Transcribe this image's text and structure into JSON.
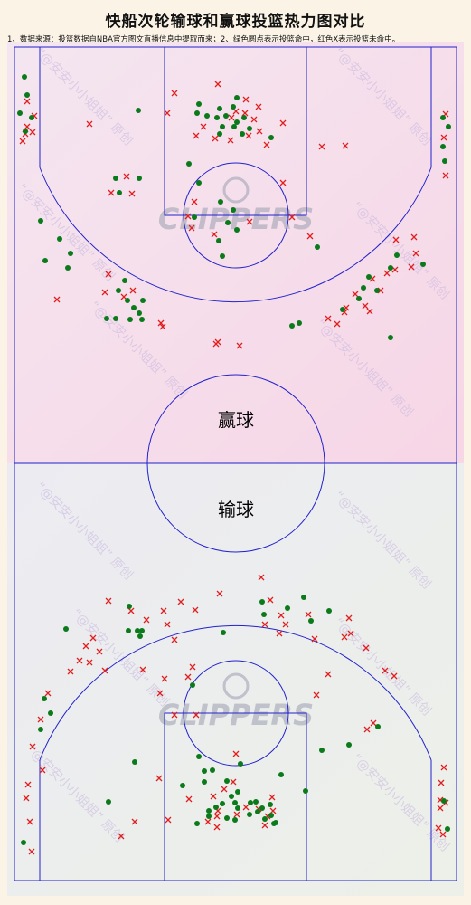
{
  "title": "快船次轮输球和赢球投篮热力图对比",
  "note": "1、数据来源：投篮数据自NBA官方图文直播信息中提取而来；2、绿色圆点表示投篮命中，红色X表示投篮未命中。",
  "watermark": "“@安安小小姐姐” 原创",
  "logo_text": "CLIPPERS",
  "colors": {
    "made": "#0a7a1a",
    "missed": "#e02020",
    "court_line": "#2222cc"
  },
  "chart_data": {
    "type": "scatter",
    "panels": [
      {
        "label": "赢球",
        "made": [
          [
            27,
            85
          ],
          [
            30,
            105
          ],
          [
            22,
            125
          ],
          [
            35,
            130
          ],
          [
            28,
            145
          ],
          [
            153,
            122
          ],
          [
            220,
            115
          ],
          [
            218,
            125
          ],
          [
            229,
            128
          ],
          [
            243,
            120
          ],
          [
            250,
            128
          ],
          [
            258,
            118
          ],
          [
            262,
            108
          ],
          [
            262,
            135
          ],
          [
            270,
            130
          ],
          [
            276,
            142
          ],
          [
            268,
            148
          ],
          [
            259,
            140
          ],
          [
            246,
            140
          ],
          [
            243,
            148
          ],
          [
            240,
            130
          ],
          [
            300,
            152
          ],
          [
            490,
            130
          ],
          [
            496,
            140
          ],
          [
            490,
            162
          ],
          [
            492,
            178
          ],
          [
            209,
            181
          ],
          [
            154,
            197
          ],
          [
            128,
            197
          ],
          [
            132,
            213
          ],
          [
            220,
            202
          ],
          [
            244,
            223
          ],
          [
            258,
            232
          ],
          [
            215,
            240
          ],
          [
            252,
            246
          ],
          [
            262,
            254
          ],
          [
            242,
            266
          ],
          [
            246,
            283
          ],
          [
            351,
            273
          ],
          [
            45,
            244
          ],
          [
            66,
            264
          ],
          [
            78,
            280
          ],
          [
            75,
            296
          ],
          [
            50,
            288
          ],
          [
            138,
            310
          ],
          [
            131,
            321
          ],
          [
            128,
            352
          ],
          [
            141,
            332
          ],
          [
            148,
            340
          ],
          [
            158,
            332
          ],
          [
            154,
            346
          ],
          [
            157,
            353
          ],
          [
            118,
            352
          ],
          [
            144,
            353
          ],
          [
            331,
            357
          ],
          [
            323,
            360
          ],
          [
            379,
            342
          ],
          [
            408,
            306
          ],
          [
            402,
            318
          ],
          [
            397,
            330
          ],
          [
            417,
            321
          ],
          [
            432,
            296
          ],
          [
            439,
            282
          ],
          [
            468,
            292
          ],
          [
            432,
            373
          ]
        ],
        "missed": [
          [
            30,
            112
          ],
          [
            38,
            128
          ],
          [
            28,
            148
          ],
          [
            25,
            156
          ],
          [
            36,
            146
          ],
          [
            30,
            140
          ],
          [
            99,
            137
          ],
          [
            193,
            103
          ],
          [
            241,
            93
          ],
          [
            272,
            110
          ],
          [
            286,
            118
          ],
          [
            281,
            132
          ],
          [
            271,
            125
          ],
          [
            261,
            123
          ],
          [
            256,
            130
          ],
          [
            238,
            153
          ],
          [
            225,
            140
          ],
          [
            185,
            125
          ],
          [
            217,
            150
          ],
          [
            255,
            155
          ],
          [
            275,
            150
          ],
          [
            295,
            160
          ],
          [
            313,
            136
          ],
          [
            287,
            145
          ],
          [
            356,
            162
          ],
          [
            382,
            161
          ],
          [
            493,
            194
          ],
          [
            491,
            152
          ],
          [
            493,
            126
          ],
          [
            123,
            213
          ],
          [
            146,
            214
          ],
          [
            140,
            195
          ],
          [
            215,
            223
          ],
          [
            208,
            239
          ],
          [
            276,
            245
          ],
          [
            237,
            259
          ],
          [
            212,
            252
          ],
          [
            313,
            202
          ],
          [
            323,
            240
          ],
          [
            343,
            261
          ],
          [
            458,
            262
          ],
          [
            438,
            265
          ],
          [
            460,
            280
          ],
          [
            455,
            295
          ],
          [
            437,
            298
          ],
          [
            412,
            308
          ],
          [
            428,
            302
          ],
          [
            393,
            325
          ],
          [
            383,
            340
          ],
          [
            404,
            338
          ],
          [
            421,
            321
          ],
          [
            409,
            344
          ],
          [
            381,
            345
          ],
          [
            373,
            358
          ],
          [
            363,
            352
          ],
          [
            120,
            303
          ],
          [
            116,
            323
          ],
          [
            147,
            321
          ],
          [
            137,
            328
          ],
          [
            178,
            357
          ],
          [
            180,
            361
          ],
          [
            63,
            331
          ],
          [
            241,
            378
          ],
          [
            239,
            380
          ],
          [
            265,
            382
          ]
        ]
      },
      {
        "label": "输球",
        "made": [
          [
            143,
            670
          ],
          [
            142,
            697
          ],
          [
            152,
            697
          ],
          [
            157,
            697
          ],
          [
            155,
            703
          ],
          [
            73,
            695
          ],
          [
            49,
            772
          ],
          [
            56,
            788
          ],
          [
            45,
            806
          ],
          [
            247,
            699
          ],
          [
            213,
            757
          ],
          [
            220,
            836
          ],
          [
            235,
            851
          ],
          [
            226,
            864
          ],
          [
            251,
            863
          ],
          [
            246,
            888
          ],
          [
            260,
            887
          ],
          [
            239,
            892
          ],
          [
            231,
            902
          ],
          [
            263,
            893
          ],
          [
            277,
            887
          ],
          [
            276,
            900
          ],
          [
            283,
            886
          ],
          [
            290,
            893
          ],
          [
            299,
            889
          ],
          [
            300,
            901
          ],
          [
            285,
            897
          ],
          [
            256,
            880
          ],
          [
            263,
            875
          ],
          [
            231,
            896
          ],
          [
            202,
            868
          ],
          [
            226,
            852
          ],
          [
            293,
            905
          ],
          [
            251,
            904
          ],
          [
            336,
            660
          ],
          [
            290,
            665
          ],
          [
            318,
            672
          ],
          [
            292,
            679
          ],
          [
            344,
            686
          ],
          [
            364,
            675
          ],
          [
            356,
            829
          ],
          [
            386,
            823
          ],
          [
            338,
            874
          ],
          [
            311,
            856
          ],
          [
            260,
            906
          ],
          [
            418,
            803
          ],
          [
            491,
            885
          ],
          [
            495,
            916
          ],
          [
            303,
            910
          ],
          [
            149,
            842
          ],
          [
            120,
            886
          ],
          [
            218,
            910
          ],
          [
            266,
            844
          ],
          [
            305,
            909
          ],
          [
            26,
            931
          ]
        ],
        "missed": [
          [
            120,
            664
          ],
          [
            145,
            675
          ],
          [
            162,
            685
          ],
          [
            181,
            675
          ],
          [
            185,
            690
          ],
          [
            243,
            656
          ],
          [
            200,
            665
          ],
          [
            216,
            674
          ],
          [
            289,
            638
          ],
          [
            341,
            679
          ],
          [
            311,
            680
          ],
          [
            348,
            706
          ],
          [
            299,
            663
          ],
          [
            293,
            690
          ],
          [
            309,
            700
          ],
          [
            316,
            690
          ],
          [
            386,
            683
          ],
          [
            388,
            700
          ],
          [
            381,
            704
          ],
          [
            405,
            716
          ],
          [
            103,
            705
          ],
          [
            110,
            720
          ],
          [
            95,
            714
          ],
          [
            88,
            730
          ],
          [
            99,
            732
          ],
          [
            116,
            741
          ],
          [
            78,
            742
          ],
          [
            53,
            766
          ],
          [
            45,
            795
          ],
          [
            36,
            825
          ],
          [
            47,
            851
          ],
          [
            31,
            867
          ],
          [
            29,
            882
          ],
          [
            33,
            908
          ],
          [
            35,
            941
          ],
          [
            182,
            750
          ],
          [
            208,
            748
          ],
          [
            213,
            737
          ],
          [
            158,
            740
          ],
          [
            177,
            766
          ],
          [
            217,
            790
          ],
          [
            193,
            790
          ],
          [
            350,
            768
          ],
          [
            363,
            745
          ],
          [
            426,
            741
          ],
          [
            436,
            747
          ],
          [
            413,
            799
          ],
          [
            406,
            806
          ],
          [
            491,
            848
          ],
          [
            488,
            865
          ],
          [
            487,
            884
          ],
          [
            485,
            915
          ],
          [
            490,
            922
          ],
          [
            493,
            887
          ],
          [
            487,
            893
          ],
          [
            176,
            860
          ],
          [
            209,
            883
          ],
          [
            248,
            872
          ],
          [
            241,
            896
          ],
          [
            240,
            914
          ],
          [
            262,
            900
          ],
          [
            272,
            892
          ],
          [
            236,
            880
          ],
          [
            301,
            881
          ],
          [
            296,
            902
          ],
          [
            258,
            864
          ],
          [
            230,
            908
          ],
          [
            149,
            908
          ],
          [
            134,
            924
          ],
          [
            293,
            912
          ],
          [
            302,
            896
          ],
          [
            186,
            906
          ],
          [
            261,
            833
          ],
          [
            240,
            902
          ],
          [
            286,
            894
          ],
          [
            193,
            707
          ]
        ]
      }
    ]
  }
}
